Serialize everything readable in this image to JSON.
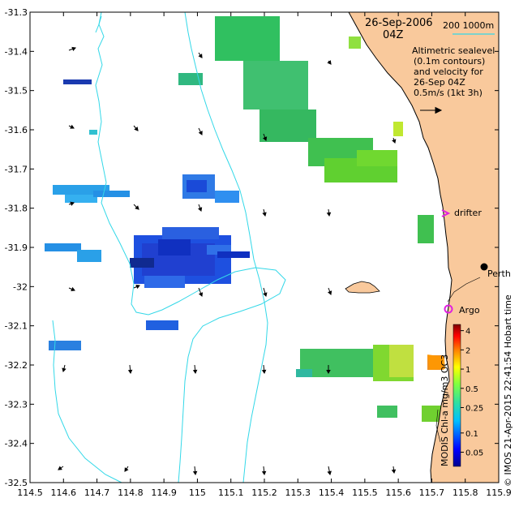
{
  "map": {
    "datetime": "26-Sep-2006",
    "time": "04Z",
    "legend_depths": "200  1000m",
    "description_lines": [
      "Altimetric sealevel",
      "(0.1m contours)",
      "and velocity for",
      "26-Sep 04Z",
      "0.5m/s (1kt 3h)"
    ],
    "x_ticks": [
      "114.5",
      "114.6",
      "114.7",
      "114.8",
      "114.9",
      "115",
      "115.1",
      "115.2",
      "115.3",
      "115.4",
      "115.5",
      "115.6",
      "115.7",
      "115.8",
      "115.9"
    ],
    "y_ticks": [
      "-31.3",
      "-31.4",
      "-31.5",
      "-31.6",
      "-31.7",
      "-31.8",
      "-31.9",
      "-32",
      "-32.1",
      "-32.2",
      "-32.3",
      "-32.4",
      "-32.5"
    ],
    "labels": {
      "drifter": "drifter",
      "perth": "Perth",
      "argo": "Argo"
    },
    "side_text": "© IMOS 21-Apr-2015 22:41:54 Hobart time",
    "colorbar": {
      "title": "MODIS Chl-a mg/m3 OC3",
      "ticks": [
        "4",
        "2",
        "1",
        "0.5",
        "0.25",
        "0.1",
        "0.05"
      ]
    },
    "colors": {
      "land": "#f9c99c",
      "depth_contour": "#33d8e8",
      "drifter_marker": "#e020e0",
      "argo_marker": "#e020e0"
    }
  }
}
